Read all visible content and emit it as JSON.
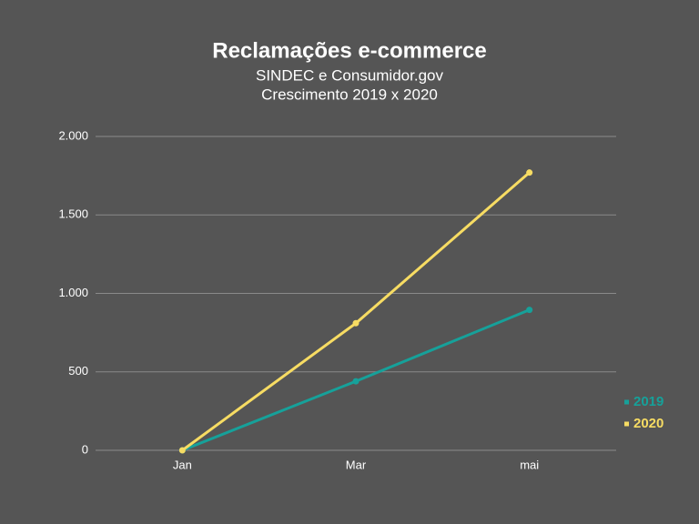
{
  "chart_data": {
    "type": "line",
    "title": "Reclamações e-commerce",
    "subtitle": [
      "SINDEC e Consumidor.gov",
      "Crescimento 2019 x 2020"
    ],
    "categories": [
      "Jan",
      "Mar",
      "mai"
    ],
    "series": [
      {
        "name": "2019",
        "color": "#16a19a",
        "values": [
          0,
          440,
          895
        ]
      },
      {
        "name": "2020",
        "color": "#f7dc63",
        "values": [
          0,
          810,
          1770
        ]
      }
    ],
    "ylim": [
      0,
      2000
    ],
    "yticks": [
      0,
      500,
      {
        "value": 1000,
        "label": "1.000"
      },
      {
        "value": 1500,
        "label": "1.500"
      },
      {
        "value": 2000,
        "label": "2.000"
      }
    ],
    "grid": true,
    "legend": "right"
  }
}
